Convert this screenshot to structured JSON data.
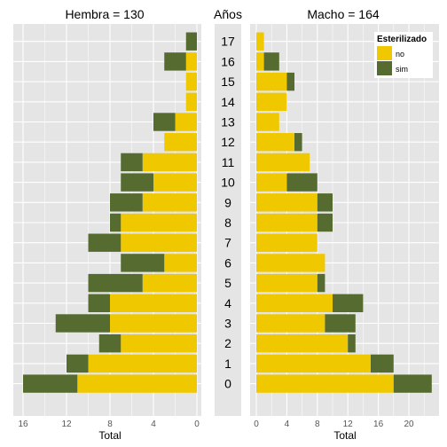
{
  "chart_data": {
    "type": "bar",
    "orientation": "horizontal",
    "layout": "population-pyramid",
    "age_axis_title": "Años",
    "ages": [
      "0",
      "1",
      "2",
      "3",
      "4",
      "5",
      "6",
      "7",
      "8",
      "9",
      "10",
      "11",
      "12",
      "13",
      "14",
      "15",
      "16",
      "17"
    ],
    "legend": {
      "title": "Esterilizado",
      "placement": "top-right",
      "items": [
        {
          "key": "no",
          "label": "no",
          "color": "#EFC800"
        },
        {
          "key": "sim",
          "label": "sim",
          "color": "#566B30"
        }
      ]
    },
    "panels": [
      {
        "side": "left",
        "title": "Hembra  =  130",
        "xlabel": "Total",
        "xlim": [
          0,
          16.5
        ],
        "ticks": [
          16,
          12,
          8,
          4,
          0
        ],
        "series": [
          {
            "name": "no",
            "values": [
              11,
              10,
              7,
              8,
              8,
              5,
              3,
              7,
              7,
              5,
              4,
              5,
              3,
              2,
              1,
              1,
              1,
              0
            ]
          },
          {
            "name": "sim",
            "values": [
              5,
              2,
              2,
              5,
              2,
              5,
              4,
              3,
              1,
              3,
              3,
              2,
              0,
              2,
              0,
              0,
              2,
              1
            ]
          }
        ]
      },
      {
        "side": "right",
        "title": "Macho  =  164",
        "xlabel": "Total",
        "xlim": [
          0,
          23.5
        ],
        "ticks": [
          0,
          4,
          8,
          12,
          16,
          20
        ],
        "series": [
          {
            "name": "no",
            "values": [
              18,
              15,
              12,
              9,
              10,
              8,
              9,
              8,
              8,
              8,
              4,
              7,
              5,
              3,
              4,
              4,
              1,
              1
            ]
          },
          {
            "name": "sim",
            "values": [
              5,
              3,
              1,
              4,
              4,
              1,
              0,
              0,
              2,
              2,
              4,
              0,
              1,
              0,
              0,
              1,
              2,
              0
            ]
          }
        ]
      }
    ]
  }
}
